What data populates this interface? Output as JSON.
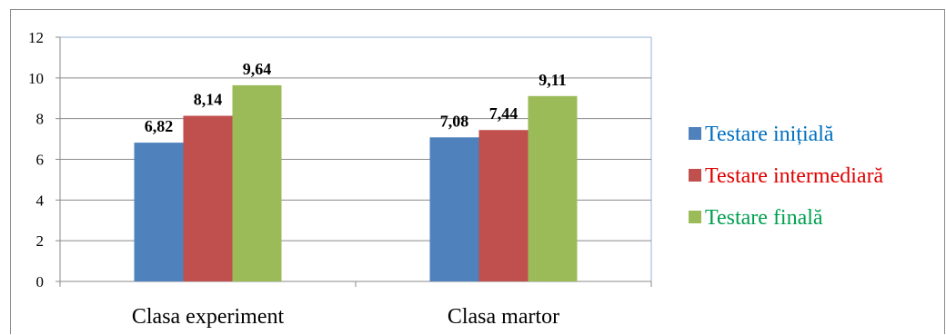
{
  "chart_data": {
    "type": "bar",
    "categories": [
      "Clasa experiment",
      "Clasa martor"
    ],
    "series": [
      {
        "name": "Testare inițială",
        "color": "#4f81bd",
        "values": [
          6.82,
          7.08
        ],
        "labels": [
          "6,82",
          "7,08"
        ]
      },
      {
        "name": "Testare intermediară",
        "color": "#c0504d",
        "values": [
          8.14,
          7.44
        ],
        "labels": [
          "8,14",
          "7,44"
        ]
      },
      {
        "name": "Testare finală",
        "color": "#9bbb59",
        "values": [
          9.64,
          9.11
        ],
        "labels": [
          "9,64",
          "9,11"
        ]
      }
    ],
    "ylim": [
      0,
      12
    ],
    "yticks": [
      0,
      2,
      4,
      6,
      8,
      10,
      12
    ],
    "legend_text_colors": [
      "#0070c0",
      "#e00000",
      "#00a050"
    ],
    "legend_position": "right",
    "grid": true,
    "gridline_color": "#8a8a8a",
    "plot_border_color": "#95b3d7"
  }
}
